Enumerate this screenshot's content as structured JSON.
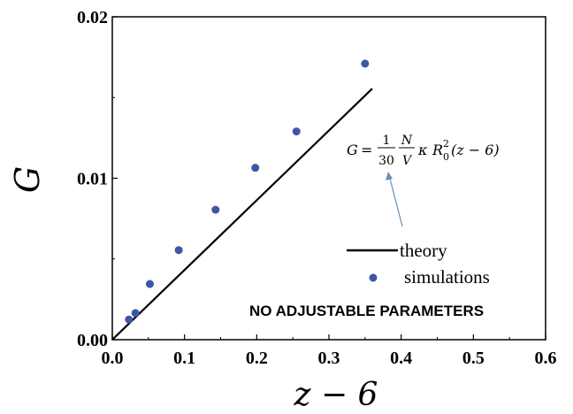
{
  "chart_data": {
    "type": "scatter",
    "xlabel": "z − 6",
    "ylabel": "G",
    "xlim": [
      0.0,
      0.6
    ],
    "ylim": [
      0.0,
      0.02
    ],
    "x_ticks": [
      "0.0",
      "0.1",
      "0.2",
      "0.3",
      "0.4",
      "0.5",
      "0.6"
    ],
    "y_ticks": [
      "0.00",
      "0.01",
      "0.02"
    ],
    "grid": false,
    "legend_position": "lower-right",
    "series": [
      {
        "name": "theory",
        "kind": "line",
        "color": "#000000",
        "x": [
          0.0,
          0.36
        ],
        "y": [
          0.0,
          0.01555
        ]
      },
      {
        "name": "simulations",
        "kind": "scatter",
        "color": "#3f55a6",
        "x": [
          0.023,
          0.032,
          0.052,
          0.092,
          0.143,
          0.198,
          0.255,
          0.35
        ],
        "y": [
          0.00125,
          0.00165,
          0.00345,
          0.00555,
          0.00805,
          0.01065,
          0.0129,
          0.0171
        ]
      }
    ],
    "annotations": {
      "equation": {
        "lhs": "G",
        "equals": "=",
        "frac1_num": "1",
        "frac1_den": "30",
        "frac2_num": "N",
        "frac2_den": "V",
        "kappa": "κ",
        "R": "R",
        "R_sub": "0",
        "R_sup": "2",
        "tail": "(z − 6)"
      },
      "note": "NO ADJUSTABLE PARAMETERS",
      "arrow_color": "#6a8fb8"
    }
  }
}
